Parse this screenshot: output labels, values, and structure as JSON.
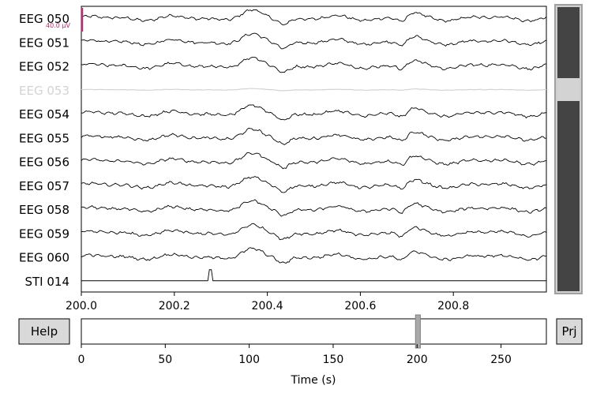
{
  "chart_data": [
    {
      "type": "line",
      "title": "",
      "xlabel": "",
      "ylabel": "",
      "xlim": [
        200.0,
        201.0
      ],
      "x_ticks": [
        "200.0",
        "200.2",
        "200.4",
        "200.6",
        "200.8"
      ],
      "x_tick_values": [
        200.0,
        200.2,
        200.4,
        200.6,
        200.8
      ],
      "channels": [
        {
          "name": "EEG 050",
          "color": "#000000",
          "bad": false
        },
        {
          "name": "EEG 051",
          "color": "#000000",
          "bad": false
        },
        {
          "name": "EEG 052",
          "color": "#000000",
          "bad": false
        },
        {
          "name": "EEG 053",
          "color": "#d3d3d3",
          "bad": true
        },
        {
          "name": "EEG 054",
          "color": "#000000",
          "bad": false
        },
        {
          "name": "EEG 055",
          "color": "#000000",
          "bad": false
        },
        {
          "name": "EEG 056",
          "color": "#000000",
          "bad": false
        },
        {
          "name": "EEG 057",
          "color": "#000000",
          "bad": false
        },
        {
          "name": "EEG 058",
          "color": "#000000",
          "bad": false
        },
        {
          "name": "EEG 059",
          "color": "#000000",
          "bad": false
        },
        {
          "name": "EEG 060",
          "color": "#000000",
          "bad": false
        },
        {
          "name": "STI 014",
          "color": "#000000",
          "bad": false
        }
      ],
      "stim_events": [
        {
          "start": 200.272,
          "end": 200.283
        }
      ],
      "scale_bar_label": "40.0 µV",
      "scale_bar_color": "#b03070",
      "grid": false
    },
    {
      "type": "bar",
      "title": "",
      "xlabel": "Time (s)",
      "ylabel": "",
      "xlim": [
        0,
        277
      ],
      "x_ticks": [
        "0",
        "50",
        "100",
        "150",
        "200",
        "250"
      ],
      "x_tick_values": [
        0,
        50,
        100,
        150,
        200,
        250
      ],
      "window": {
        "start": 200.0,
        "end": 201.0
      }
    }
  ],
  "buttons": {
    "help": "Help",
    "proj": "Prj"
  },
  "vscroll": {
    "channels_total": 12,
    "bad_channel": "EEG 053"
  }
}
